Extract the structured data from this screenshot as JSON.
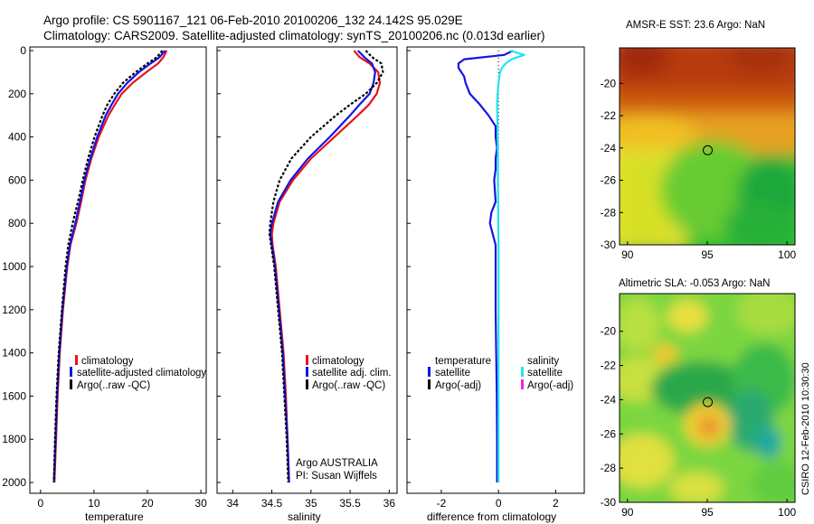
{
  "header": {
    "line1": "Argo profile: CS 5901167_121 06-Feb-2010 20100206_132 24.142S 95.029E",
    "line2": "Climatology: CARS2009. Satellite-adjusted climatology: synTS_20100206.nc (0.013d earlier)"
  },
  "colors": {
    "climatology": "#e8141a",
    "satellite": "#1515e0",
    "argo": "#000000",
    "salinity_satellite": "#22e4ec",
    "salinity_argo": "#ee22ee"
  },
  "panels": {
    "temperature": {
      "xlabel": "temperature",
      "legend": [
        "climatology",
        "satellite-adjusted climatology",
        "Argo(..raw -QC)"
      ]
    },
    "salinity": {
      "xlabel": "salinity",
      "legend": [
        "climatology",
        "satellite adj. clim.",
        "Argo(..raw -QC)"
      ],
      "note1": "Argo AUSTRALIA",
      "note2": "PI: Susan Wijffels"
    },
    "difference": {
      "xlabel": "difference from climatology",
      "legend_temp_title": "temperature",
      "legend_temp": [
        "satellite",
        "Argo(-adj)"
      ],
      "legend_sal_title": "salinity",
      "legend_sal": [
        "satellite",
        "Argo(-adj)"
      ]
    },
    "sst_map": {
      "title": "AMSR-E SST: 23.6 Argo: NaN"
    },
    "sla_map": {
      "title": "Altimetric SLA: -0.053 Argo: NaN"
    }
  },
  "footer": {
    "stamp": "CSIRO 12-Feb-2010 10:30:30"
  },
  "chart_data": [
    {
      "type": "line",
      "id": "temperature",
      "xlabel": "temperature",
      "ylabel": "",
      "xlim": [
        -2,
        31
      ],
      "ylim": [
        2050,
        0
      ],
      "xticks": [
        0,
        10,
        20,
        30
      ],
      "yticks": [
        0,
        200,
        400,
        600,
        800,
        1000,
        1200,
        1400,
        1600,
        1800,
        2000
      ],
      "series": [
        {
          "name": "climatology",
          "color": "#e8141a",
          "dash": "",
          "depth": [
            0,
            30,
            60,
            100,
            150,
            200,
            250,
            300,
            400,
            500,
            600,
            700,
            800,
            900,
            1000,
            1200,
            1400,
            1600,
            1800,
            2000
          ],
          "values": [
            23.6,
            23.0,
            22.0,
            19.8,
            17.2,
            15.2,
            13.9,
            12.7,
            10.9,
            9.5,
            8.4,
            7.6,
            6.7,
            5.6,
            5.0,
            4.2,
            3.6,
            3.2,
            2.9,
            2.6
          ]
        },
        {
          "name": "satellite-adjusted climatology",
          "color": "#1515e0",
          "dash": "",
          "depth": [
            0,
            30,
            60,
            100,
            150,
            200,
            250,
            300,
            400,
            500,
            600,
            700,
            800,
            900,
            1000,
            1200,
            1400,
            1600,
            1800,
            2000
          ],
          "values": [
            23.3,
            22.3,
            20.6,
            18.4,
            16.2,
            14.5,
            13.3,
            12.2,
            10.6,
            9.3,
            8.2,
            7.4,
            6.5,
            5.5,
            4.9,
            4.1,
            3.5,
            3.1,
            2.8,
            2.5
          ]
        },
        {
          "name": "Argo(..raw -QC)",
          "color": "#000000",
          "dash": "3,2",
          "depth": [
            0,
            30,
            60,
            100,
            150,
            200,
            250,
            300,
            400,
            500,
            600,
            700,
            800,
            900,
            1000,
            1200,
            1400,
            1600,
            1800,
            2000
          ],
          "values": [
            22.8,
            21.8,
            20.0,
            17.8,
            15.4,
            13.8,
            12.5,
            11.6,
            10.1,
            8.9,
            7.9,
            7.0,
            6.0,
            5.2,
            4.7,
            4.0,
            3.4,
            3.0,
            2.7,
            2.5
          ]
        }
      ],
      "legend": [
        "climatology",
        "satellite-adjusted climatology",
        "Argo(..raw -QC)"
      ]
    },
    {
      "type": "line",
      "id": "salinity",
      "xlabel": "salinity",
      "ylabel": "",
      "xlim": [
        33.8,
        36.1
      ],
      "ylim": [
        2050,
        0
      ],
      "xticks": [
        34,
        34.5,
        35,
        35.5,
        36
      ],
      "series": [
        {
          "name": "climatology",
          "color": "#e8141a",
          "dash": "",
          "depth": [
            0,
            30,
            60,
            100,
            150,
            200,
            250,
            300,
            400,
            500,
            600,
            700,
            800,
            850,
            900,
            1000,
            1200,
            1400,
            1600,
            1800,
            2000
          ],
          "values": [
            35.55,
            35.62,
            35.75,
            35.86,
            35.88,
            35.84,
            35.74,
            35.6,
            35.3,
            35.0,
            34.77,
            34.6,
            34.52,
            34.5,
            34.51,
            34.55,
            34.6,
            34.65,
            34.68,
            34.7,
            34.72
          ]
        },
        {
          "name": "satellite adj. clim.",
          "color": "#1515e0",
          "dash": "",
          "depth": [
            0,
            30,
            60,
            100,
            150,
            200,
            250,
            300,
            400,
            500,
            600,
            700,
            800,
            850,
            900,
            1000,
            1200,
            1400,
            1600,
            1800,
            2000
          ],
          "values": [
            35.6,
            35.68,
            35.78,
            35.82,
            35.8,
            35.75,
            35.62,
            35.5,
            35.24,
            34.96,
            34.74,
            34.58,
            34.5,
            34.48,
            34.5,
            34.54,
            34.59,
            34.64,
            34.67,
            34.7,
            34.72
          ]
        },
        {
          "name": "Argo(..raw -QC)",
          "color": "#000000",
          "dash": "3,2",
          "depth": [
            0,
            30,
            60,
            100,
            150,
            200,
            250,
            300,
            400,
            500,
            600,
            700,
            800,
            850,
            900,
            1000,
            1200,
            1400,
            1600,
            1800,
            2000
          ],
          "values": [
            35.7,
            35.78,
            35.9,
            35.92,
            35.84,
            35.7,
            35.5,
            35.32,
            35.0,
            34.75,
            34.6,
            34.52,
            34.48,
            34.47,
            34.49,
            34.53,
            34.58,
            34.63,
            34.66,
            34.69,
            34.71
          ]
        }
      ],
      "legend": [
        "climatology",
        "satellite adj. clim.",
        "Argo(..raw -QC)"
      ]
    },
    {
      "type": "line",
      "id": "difference",
      "xlabel": "difference from climatology",
      "ylabel": "",
      "xlim": [
        -3.2,
        3.0
      ],
      "ylim": [
        2050,
        0
      ],
      "xticks": [
        -2,
        0,
        2
      ],
      "zero_line": true,
      "series": [
        {
          "name": "temperature satellite",
          "color": "#1515e0",
          "dash": "",
          "depth": [
            0,
            20,
            40,
            60,
            80,
            100,
            120,
            150,
            200,
            250,
            300,
            350,
            400,
            450,
            500,
            550,
            600,
            700,
            750,
            800,
            850,
            900,
            1000,
            1200,
            1400,
            1600,
            1800,
            2000
          ],
          "values": [
            0.5,
            0.2,
            -1.2,
            -1.4,
            -1.4,
            -1.3,
            -1.2,
            -1.15,
            -1.0,
            -0.65,
            -0.35,
            -0.1,
            -0.1,
            -0.05,
            -0.1,
            -0.1,
            -0.15,
            -0.1,
            -0.25,
            -0.3,
            -0.2,
            -0.1,
            -0.1,
            -0.1,
            -0.08,
            -0.06,
            -0.05,
            -0.05
          ]
        },
        {
          "name": "salinity satellite",
          "color": "#22e4ec",
          "dash": "",
          "depth": [
            0,
            20,
            40,
            60,
            80,
            100,
            150,
            200,
            250,
            300,
            400,
            500,
            600,
            700,
            800,
            900,
            1000,
            1200,
            1400,
            1600,
            1800,
            2000
          ],
          "values": [
            0.4,
            0.9,
            0.45,
            0.25,
            0.12,
            0.05,
            0.0,
            -0.03,
            -0.05,
            -0.04,
            -0.03,
            -0.02,
            -0.02,
            -0.01,
            -0.01,
            0.0,
            0.0,
            0.0,
            0.0,
            0.0,
            0.0,
            0.0
          ]
        }
      ],
      "legend": [
        "satellite",
        "Argo(-adj)",
        "satellite",
        "Argo(-adj)"
      ]
    },
    {
      "type": "heatmap",
      "id": "sst_map",
      "title": "AMSR-E SST: 23.6 Argo: NaN",
      "xlim": [
        89.5,
        100.5
      ],
      "ylim": [
        -30,
        -17.8
      ],
      "xticks": [
        90,
        95,
        100
      ],
      "yticks": [
        -20,
        -22,
        -24,
        -26,
        -28,
        -30
      ],
      "marker": {
        "lon": 95.029,
        "lat": -24.142
      }
    },
    {
      "type": "heatmap",
      "id": "sla_map",
      "title": "Altimetric SLA: -0.053 Argo: NaN",
      "xlim": [
        89.5,
        100.5
      ],
      "ylim": [
        -30,
        -17.8
      ],
      "xticks": [
        90,
        95,
        100
      ],
      "yticks": [
        -20,
        -22,
        -24,
        -26,
        -28,
        -30
      ],
      "marker": {
        "lon": 95.029,
        "lat": -24.142
      }
    }
  ]
}
